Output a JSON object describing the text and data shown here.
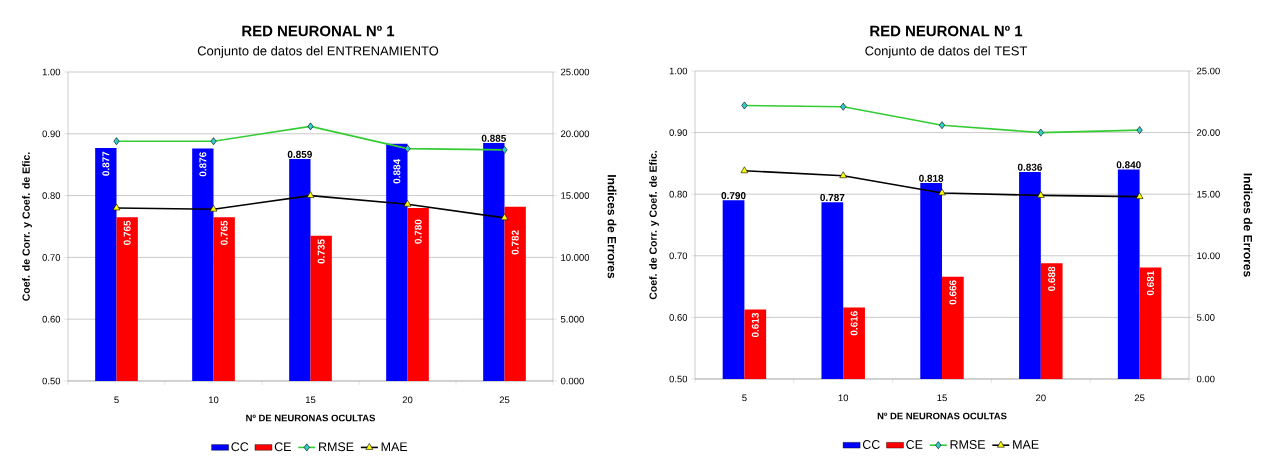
{
  "chart_data": [
    {
      "type": "bar",
      "title": "RED NEURONAL Nº 1",
      "subtitle": "Conjunto de datos del ENTRENAMIENTO",
      "xlabel": "Nº DE NEURONAS OCULTAS",
      "ylabel": "Coef. de Corr. y Coef. de Efic.",
      "y2label": "Indices de Errores",
      "categories": [
        "5",
        "10",
        "15",
        "20",
        "25"
      ],
      "ylim": [
        0.5,
        1.0
      ],
      "yticks": [
        {
          "value": 0.5,
          "label": "0.50"
        },
        {
          "value": 0.6,
          "label": "0.60"
        },
        {
          "value": 0.7,
          "label": "0.70"
        },
        {
          "value": 0.8,
          "label": "0.80"
        },
        {
          "value": 0.9,
          "label": "0.90"
        },
        {
          "value": 1.0,
          "label": "1.00"
        }
      ],
      "y2lim": [
        0,
        25
      ],
      "y2ticks": [
        {
          "value": 0,
          "label": "0.000"
        },
        {
          "value": 5,
          "label": "5.000"
        },
        {
          "value": 10,
          "label": "10.000"
        },
        {
          "value": 15,
          "label": "15.000"
        },
        {
          "value": 20,
          "label": "20.000"
        },
        {
          "value": 25,
          "label": "25.000"
        }
      ],
      "grid": "y",
      "legend": "bottom",
      "series": [
        {
          "name": "CC",
          "color": "#0000ff",
          "values": [
            0.877,
            0.876,
            0.859,
            0.884,
            0.885
          ],
          "value_labels": [
            "0.877",
            "0.876",
            "0.859",
            "0.884",
            "0.885"
          ]
        },
        {
          "name": "CE",
          "color": "#ff0000",
          "values": [
            0.765,
            0.765,
            0.735,
            0.78,
            0.782
          ],
          "value_labels": [
            "0.765",
            "0.765",
            "0.735",
            "0.780",
            "0.782"
          ]
        },
        {
          "name": "RMSE",
          "type": "line",
          "axis": "y2",
          "color": "#33cc33",
          "marker": "diamond",
          "values": [
            19.4,
            19.4,
            20.6,
            18.8,
            18.7
          ]
        },
        {
          "name": "MAE",
          "type": "line",
          "axis": "y2",
          "color": "#000000",
          "marker": "triangle",
          "values": [
            14.0,
            13.9,
            15.0,
            14.3,
            13.2
          ]
        }
      ]
    },
    {
      "type": "bar",
      "title": "RED NEURONAL Nº 1",
      "subtitle": "Conjunto de datos del TEST",
      "xlabel": "Nº DE NEURONAS OCULTAS",
      "ylabel": "Coef. de Corr. y Coef. de Efic.",
      "y2label": "Indices de Errores",
      "categories": [
        "5",
        "10",
        "15",
        "20",
        "25"
      ],
      "ylim": [
        0.5,
        1.0
      ],
      "yticks": [
        {
          "value": 0.5,
          "label": "0.50"
        },
        {
          "value": 0.6,
          "label": "0.60"
        },
        {
          "value": 0.7,
          "label": "0.70"
        },
        {
          "value": 0.8,
          "label": "0.80"
        },
        {
          "value": 0.9,
          "label": "0.90"
        },
        {
          "value": 1.0,
          "label": "1.00"
        }
      ],
      "y2lim": [
        0,
        25
      ],
      "y2ticks": [
        {
          "value": 0,
          "label": "0.00"
        },
        {
          "value": 5,
          "label": "5.00"
        },
        {
          "value": 10,
          "label": "10.00"
        },
        {
          "value": 15,
          "label": "15.00"
        },
        {
          "value": 20,
          "label": "20.00"
        },
        {
          "value": 25,
          "label": "25.00"
        }
      ],
      "grid": "y",
      "legend": "bottom",
      "series": [
        {
          "name": "CC",
          "color": "#0000ff",
          "values": [
            0.79,
            0.787,
            0.818,
            0.836,
            0.84
          ],
          "value_labels": [
            "0.790",
            "0.787",
            "0.818",
            "0.836",
            "0.840"
          ]
        },
        {
          "name": "CE",
          "color": "#ff0000",
          "values": [
            0.613,
            0.616,
            0.666,
            0.688,
            0.681
          ],
          "value_labels": [
            "0.613",
            "0.616",
            "0.666",
            "0.688",
            "0.681"
          ]
        },
        {
          "name": "RMSE",
          "type": "line",
          "axis": "y2",
          "color": "#33cc33",
          "marker": "diamond",
          "values": [
            22.2,
            22.1,
            20.6,
            20.0,
            20.2
          ]
        },
        {
          "name": "MAE",
          "type": "line",
          "axis": "y2",
          "color": "#000000",
          "marker": "triangle",
          "values": [
            16.9,
            16.5,
            15.1,
            14.9,
            14.8
          ]
        }
      ]
    }
  ]
}
